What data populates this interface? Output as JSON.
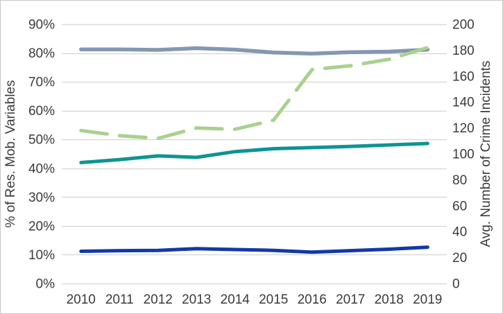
{
  "figure": {
    "background": "#ffffff",
    "border_color": "#c6c6c6",
    "gridline_color": "#d9d9d9"
  },
  "chart_data": {
    "type": "line",
    "title": "",
    "x_categories": [
      "2010",
      "2011",
      "2012",
      "2013",
      "2014",
      "2015",
      "2016",
      "2017",
      "2018",
      "2019"
    ],
    "left_axis": {
      "label": "% of Res. Mob. Variables",
      "min": 0,
      "max": 90,
      "tick_labels": [
        "0%",
        "10%",
        "20%",
        "30%",
        "40%",
        "50%",
        "60%",
        "70%",
        "80%",
        "90%"
      ],
      "tick_values": [
        0,
        10,
        20,
        30,
        40,
        50,
        60,
        70,
        80,
        90
      ]
    },
    "right_axis": {
      "label": "Avg. Number of Crime Incidents",
      "min": 0,
      "max": 200,
      "tick_labels": [
        "0",
        "20",
        "40",
        "60",
        "80",
        "100",
        "120",
        "140",
        "160",
        "180",
        "200"
      ],
      "tick_values": [
        0,
        20,
        40,
        60,
        80,
        100,
        120,
        140,
        160,
        180,
        200
      ]
    },
    "grid": true,
    "legend": false,
    "series": [
      {
        "id": "slate-line",
        "axis": "left",
        "color": "#8497B0",
        "style": "solid",
        "stroke_width": 5.5,
        "values": [
          81.3,
          81.3,
          81.1,
          81.7,
          81.2,
          80.2,
          79.8,
          80.3,
          80.5,
          81.2
        ]
      },
      {
        "id": "green-dashed-line",
        "axis": "right",
        "color": "#A9D18E",
        "style": "dashed",
        "stroke_width": 5,
        "values": [
          118,
          114,
          112,
          120,
          119,
          126,
          165,
          168,
          173,
          182
        ]
      },
      {
        "id": "teal-line",
        "axis": "left",
        "color": "#0E9494",
        "style": "solid",
        "stroke_width": 5,
        "values": [
          42,
          43,
          44.3,
          43.8,
          45.8,
          46.8,
          47.2,
          47.6,
          48.1,
          48.6
        ]
      },
      {
        "id": "navy-line",
        "axis": "left",
        "color": "#1238A8",
        "style": "solid",
        "stroke_width": 5,
        "values": [
          11.2,
          11.4,
          11.5,
          12.1,
          11.8,
          11.5,
          10.9,
          11.4,
          11.9,
          12.6
        ]
      }
    ]
  }
}
